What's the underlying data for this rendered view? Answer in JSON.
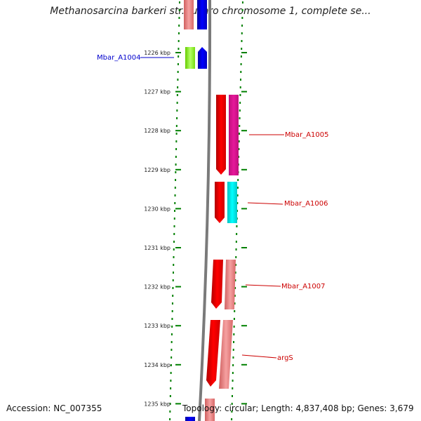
{
  "title": "Methanosarcina barkeri str. fusaro chromosome 1, complete se...",
  "accession": "Accession: NC_007355",
  "summary": "Topology: circular; Length: 4,837,408 bp; Genes: 3,679",
  "kbp_ticks": [
    {
      "label": "1226 kbp",
      "pos": 1226
    },
    {
      "label": "1227 kbp",
      "pos": 1227
    },
    {
      "label": "1228 kbp",
      "pos": 1228
    },
    {
      "label": "1229 kbp",
      "pos": 1229
    },
    {
      "label": "1230 kbp",
      "pos": 1230
    },
    {
      "label": "1231 kbp",
      "pos": 1231
    },
    {
      "label": "1232 kbp",
      "pos": 1232
    },
    {
      "label": "1233 kbp",
      "pos": 1233
    },
    {
      "label": "1234 kbp",
      "pos": 1234
    },
    {
      "label": "1235 kbp",
      "pos": 1235
    }
  ],
  "genes": [
    {
      "name": "Mbar_A1004",
      "color": "#0000cc",
      "side": "left"
    },
    {
      "name": "Mbar_A1005",
      "color": "#cc0000",
      "side": "right"
    },
    {
      "name": "Mbar_A1006",
      "color": "#cc0000",
      "side": "right"
    },
    {
      "name": "Mbar_A1007",
      "color": "#cc0000",
      "side": "right"
    },
    {
      "name": "argS",
      "color": "#cc0000",
      "side": "right"
    }
  ],
  "colors": {
    "backbone": "#808080",
    "tick_dots": "#008000",
    "feature_red": "#ff0000",
    "feature_magenta": "#e6199a",
    "feature_cyan": "#00e5e5",
    "feature_pink": "#f08080",
    "feature_blue": "#0000ff",
    "feature_lime": "#99ff33"
  }
}
